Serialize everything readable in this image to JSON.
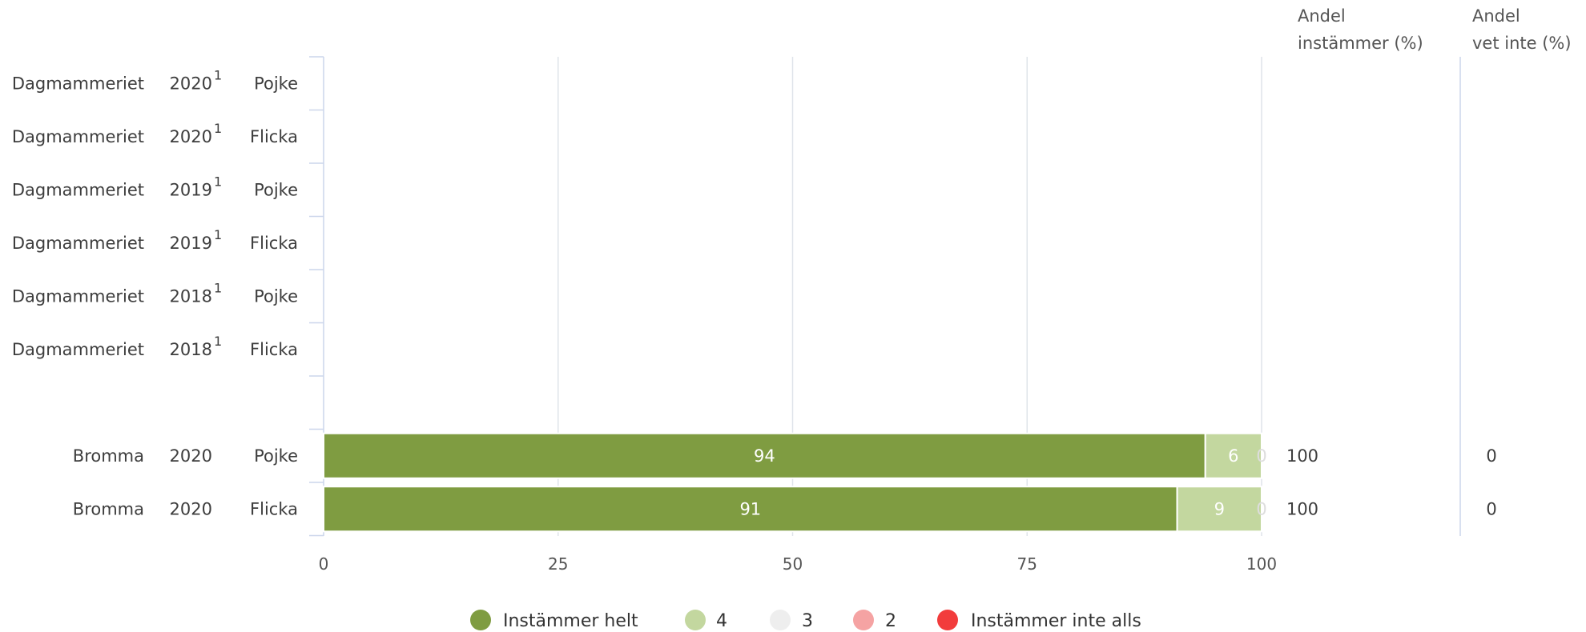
{
  "chart_data": {
    "type": "bar",
    "stacked": true,
    "orientation": "horizontal",
    "xlim": [
      0,
      100
    ],
    "x_ticks": [
      "0",
      "25",
      "50",
      "75",
      "100"
    ],
    "grid": true,
    "legend_position": "bottom",
    "columns": {
      "share_agree": [
        "Andel",
        "instämmer (%)"
      ],
      "share_dont_know": [
        "Andel",
        "vet inte (%)"
      ]
    },
    "rows": [
      {
        "unit": "Dagmammeriet",
        "year": "2020",
        "note": "1",
        "gender": "Pojke",
        "values": null,
        "share_agree": "",
        "share_dont_know": ""
      },
      {
        "unit": "Dagmammeriet",
        "year": "2020",
        "note": "1",
        "gender": "Flicka",
        "values": null,
        "share_agree": "",
        "share_dont_know": ""
      },
      {
        "unit": "Dagmammeriet",
        "year": "2019",
        "note": "1",
        "gender": "Pojke",
        "values": null,
        "share_agree": "",
        "share_dont_know": ""
      },
      {
        "unit": "Dagmammeriet",
        "year": "2019",
        "note": "1",
        "gender": "Flicka",
        "values": null,
        "share_agree": "",
        "share_dont_know": ""
      },
      {
        "unit": "Dagmammeriet",
        "year": "2018",
        "note": "1",
        "gender": "Pojke",
        "values": null,
        "share_agree": "",
        "share_dont_know": ""
      },
      {
        "unit": "Dagmammeriet",
        "year": "2018",
        "note": "1",
        "gender": "Flicka",
        "values": null,
        "share_agree": "",
        "share_dont_know": ""
      },
      {
        "spacer": true
      },
      {
        "unit": "Bromma",
        "year": "2020",
        "note": "",
        "gender": "Pojke",
        "values": [
          94,
          6,
          0,
          0,
          0
        ],
        "labels": [
          "94",
          "6",
          "0",
          "",
          ""
        ],
        "share_agree": "100",
        "share_dont_know": "0"
      },
      {
        "unit": "Bromma",
        "year": "2020",
        "note": "",
        "gender": "Flicka",
        "values": [
          91,
          9,
          0,
          0,
          0
        ],
        "labels": [
          "91",
          "9",
          "0",
          "",
          ""
        ],
        "share_agree": "100",
        "share_dont_know": "0"
      }
    ],
    "series": [
      {
        "name": "Instämmer helt",
        "color": "#7f9c41",
        "label_color": "#ffffff"
      },
      {
        "name": "4",
        "color": "#c3d79f",
        "label_color": "#ffffff"
      },
      {
        "name": "3",
        "color": "#eeeeee",
        "label_color": "#bbbbbb"
      },
      {
        "name": "2",
        "color": "#f5a3a3",
        "label_color": "#ffffff"
      },
      {
        "name": "Instämmer inte alls",
        "color": "#f23c3c",
        "label_color": "#ffffff"
      }
    ]
  }
}
